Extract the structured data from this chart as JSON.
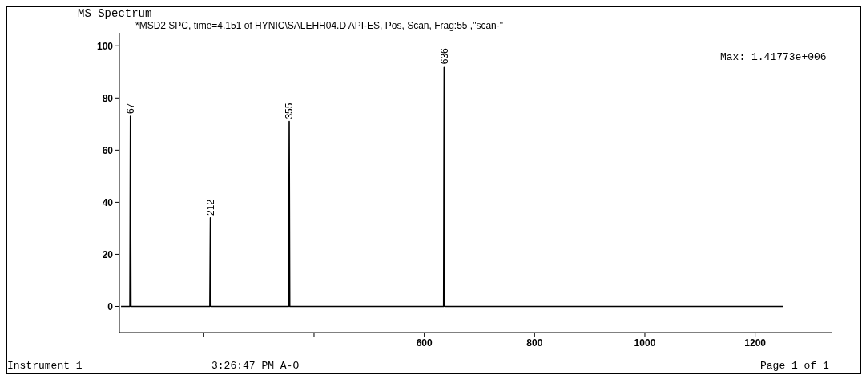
{
  "chart_data": {
    "type": "line",
    "title": "MS Spectrum",
    "subtitle": "*MSD2 SPC, time=4.151 of HYNIC\\SALEHH04.D   API-ES, Pos, Scan, Frag:55 ,\"scan-\"",
    "x": [
      50,
      66,
      67,
      68,
      211,
      212,
      213,
      354,
      355,
      356,
      635,
      636,
      637,
      1250
    ],
    "series": [
      {
        "color": "#000000",
        "values": [
          0,
          0,
          73,
          0,
          0,
          34,
          0,
          0,
          71,
          0,
          0,
          92,
          0,
          0
        ]
      }
    ],
    "xlim": [
      47,
      1340
    ],
    "xticks": [
      {
        "value": 200,
        "label": null
      },
      {
        "value": 400,
        "label": null
      },
      600,
      800,
      1000,
      1200
    ],
    "ylim": [
      -10,
      105
    ],
    "yticks": [
      0,
      20,
      40,
      60,
      80,
      100
    ],
    "grid": false,
    "legend": false,
    "marker": "none",
    "line_style": "solid",
    "annotations": [
      {
        "text": "67",
        "x": 67,
        "y": 73
      },
      {
        "text": "212",
        "x": 212,
        "y": 34
      },
      {
        "text": "355",
        "x": 355,
        "y": 71
      },
      {
        "text": "636",
        "x": 636,
        "y": 92
      },
      "Max: 1.41773e+006",
      "Instrument 1",
      "3:26:47 PM A-O",
      "Page 1 of 1"
    ]
  }
}
